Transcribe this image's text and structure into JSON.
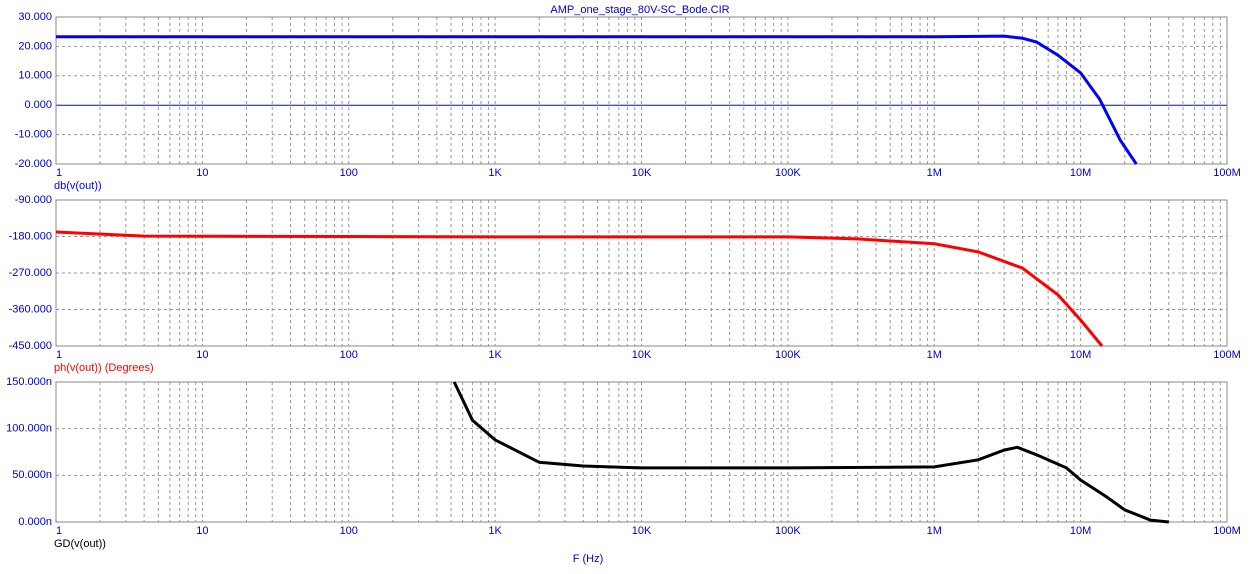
{
  "chart_data": [
    {
      "type": "line",
      "title": "AMP_one_stage_80V-SC_Bode.CIR",
      "ylabel": "db(v(out))",
      "color": "#0000ff",
      "log_x": true,
      "grid": true,
      "zero_line": true,
      "x": [
        1,
        10,
        100,
        1000,
        10000,
        100000,
        1000000,
        2000000,
        3000000,
        4000000,
        5000000,
        7000000,
        10000000,
        13500000,
        18600000,
        24000000
      ],
      "values": [
        23.3,
        23.3,
        23.3,
        23.3,
        23.3,
        23.3,
        23.3,
        23.4,
        23.5,
        22.8,
        21.5,
        17,
        11,
        2,
        -11.8,
        -20
      ],
      "xlim": [
        1,
        100000000
      ],
      "xticks": [
        1,
        10,
        100,
        {
          "value": 1000,
          "label": "1K"
        },
        {
          "value": 10000,
          "label": "10K"
        },
        {
          "value": 100000,
          "label": "100K"
        },
        {
          "value": 1000000,
          "label": "1M"
        },
        {
          "value": 10000000,
          "label": "10M"
        },
        {
          "value": 100000000,
          "label": "100M"
        }
      ],
      "ylim": [
        -20,
        30
      ],
      "yticks": [
        {
          "value": -20,
          "label": "-20.000"
        },
        {
          "value": -10,
          "label": "-10.000"
        },
        {
          "value": 0,
          "label": "0.000"
        },
        {
          "value": 10,
          "label": "10.000"
        },
        {
          "value": 20,
          "label": "20.000"
        },
        {
          "value": 30,
          "label": "30.000"
        }
      ]
    },
    {
      "type": "line",
      "ylabel": "ph(v(out)) (Degrees)",
      "color": "#ff0000",
      "log_x": true,
      "grid": true,
      "x": [
        1,
        4,
        100,
        1000,
        10000,
        100000,
        300000,
        1000000,
        2000000,
        4000000,
        7000000,
        10000000,
        14000000
      ],
      "values": [
        -169,
        -179,
        -180,
        -181,
        -181,
        -181,
        -186,
        -198,
        -218,
        -258,
        -324,
        -386,
        -450
      ],
      "xlim": [
        1,
        100000000
      ],
      "xticks": [
        1,
        10,
        100,
        {
          "value": 1000,
          "label": "1K"
        },
        {
          "value": 10000,
          "label": "10K"
        },
        {
          "value": 100000,
          "label": "100K"
        },
        {
          "value": 1000000,
          "label": "1M"
        },
        {
          "value": 10000000,
          "label": "10M"
        },
        {
          "value": 100000000,
          "label": "100M"
        }
      ],
      "ylim": [
        -450,
        -90
      ],
      "yticks": [
        {
          "value": -450,
          "label": "-450.000"
        },
        {
          "value": -360,
          "label": "-360.000"
        },
        {
          "value": -270,
          "label": "-270.000"
        },
        {
          "value": -180,
          "label": "-180.000"
        },
        {
          "value": -90,
          "label": "-90.000"
        }
      ]
    },
    {
      "type": "line",
      "ylabel": "GD(v(out))",
      "xlabel": "F (Hz)",
      "color": "#000000",
      "log_x": true,
      "grid": true,
      "x": [
        525,
        700,
        1000,
        2000,
        4000,
        10000,
        100000,
        1000000,
        2000000,
        3000000,
        3700000,
        5000000,
        8000000,
        10000000,
        15000000,
        20000000,
        30000000,
        40000000
      ],
      "values": [
        150,
        109,
        88,
        64,
        60,
        58,
        58,
        59,
        66.6,
        77,
        80,
        72,
        58,
        45,
        27,
        13,
        2,
        0
      ],
      "xlim": [
        1,
        100000000
      ],
      "xticks": [
        1,
        10,
        100,
        {
          "value": 1000,
          "label": "1K"
        },
        {
          "value": 10000,
          "label": "10K"
        },
        {
          "value": 100000,
          "label": "100K"
        },
        {
          "value": 1000000,
          "label": "1M"
        },
        {
          "value": 10000000,
          "label": "10M"
        },
        {
          "value": 100000000,
          "label": "100M"
        }
      ],
      "ylim": [
        0,
        150
      ],
      "yticks": [
        {
          "value": 0,
          "label": "0.000n"
        },
        {
          "value": 50,
          "label": "50.000n"
        },
        {
          "value": 100,
          "label": "100.000n"
        },
        {
          "value": 150,
          "label": "150.000n"
        }
      ]
    }
  ]
}
